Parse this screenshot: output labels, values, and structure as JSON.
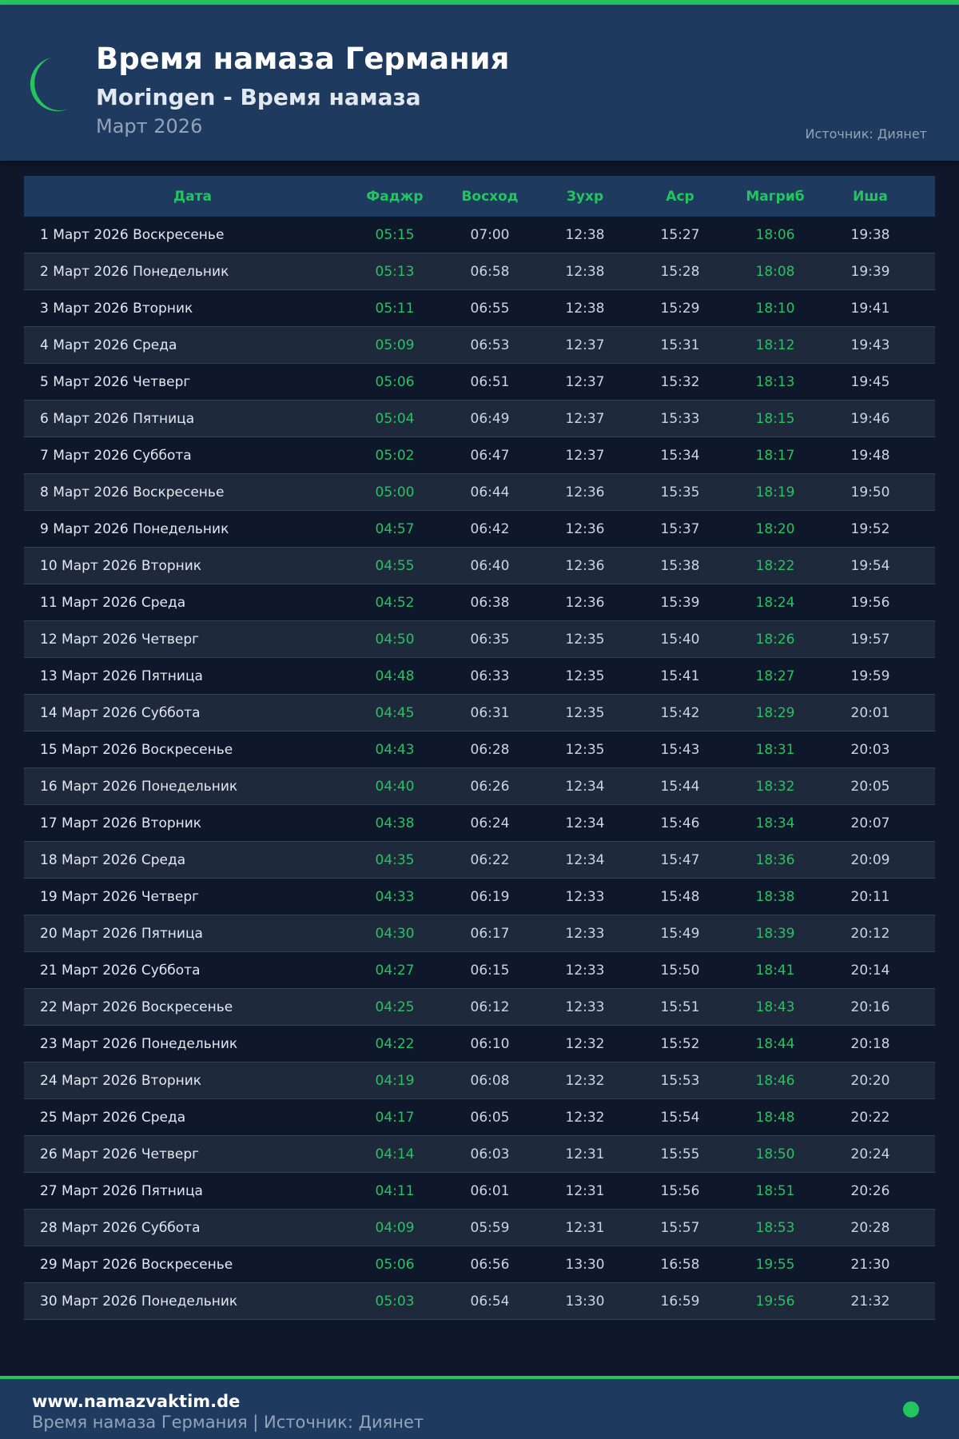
{
  "header": {
    "title": "Время намаза Германия",
    "subtitle": "Moringen - Время намаза",
    "month": "Март 2026",
    "source": "Источник: Диянет"
  },
  "colors": {
    "accent": "#22c55e",
    "header_bg": "#1e3a5f",
    "page_bg": "#0f172a"
  },
  "table": {
    "columns": [
      "Дата",
      "Фаджр",
      "Восход",
      "Зухр",
      "Аср",
      "Магриб",
      "Иша"
    ],
    "rows": [
      [
        "1 Март 2026 Воскресенье",
        "05:15",
        "07:00",
        "12:38",
        "15:27",
        "18:06",
        "19:38"
      ],
      [
        "2 Март 2026 Понедельник",
        "05:13",
        "06:58",
        "12:38",
        "15:28",
        "18:08",
        "19:39"
      ],
      [
        "3 Март 2026 Вторник",
        "05:11",
        "06:55",
        "12:38",
        "15:29",
        "18:10",
        "19:41"
      ],
      [
        "4 Март 2026 Среда",
        "05:09",
        "06:53",
        "12:37",
        "15:31",
        "18:12",
        "19:43"
      ],
      [
        "5 Март 2026 Четверг",
        "05:06",
        "06:51",
        "12:37",
        "15:32",
        "18:13",
        "19:45"
      ],
      [
        "6 Март 2026 Пятница",
        "05:04",
        "06:49",
        "12:37",
        "15:33",
        "18:15",
        "19:46"
      ],
      [
        "7 Март 2026 Суббота",
        "05:02",
        "06:47",
        "12:37",
        "15:34",
        "18:17",
        "19:48"
      ],
      [
        "8 Март 2026 Воскресенье",
        "05:00",
        "06:44",
        "12:36",
        "15:35",
        "18:19",
        "19:50"
      ],
      [
        "9 Март 2026 Понедельник",
        "04:57",
        "06:42",
        "12:36",
        "15:37",
        "18:20",
        "19:52"
      ],
      [
        "10 Март 2026 Вторник",
        "04:55",
        "06:40",
        "12:36",
        "15:38",
        "18:22",
        "19:54"
      ],
      [
        "11 Март 2026 Среда",
        "04:52",
        "06:38",
        "12:36",
        "15:39",
        "18:24",
        "19:56"
      ],
      [
        "12 Март 2026 Четверг",
        "04:50",
        "06:35",
        "12:35",
        "15:40",
        "18:26",
        "19:57"
      ],
      [
        "13 Март 2026 Пятница",
        "04:48",
        "06:33",
        "12:35",
        "15:41",
        "18:27",
        "19:59"
      ],
      [
        "14 Март 2026 Суббота",
        "04:45",
        "06:31",
        "12:35",
        "15:42",
        "18:29",
        "20:01"
      ],
      [
        "15 Март 2026 Воскресенье",
        "04:43",
        "06:28",
        "12:35",
        "15:43",
        "18:31",
        "20:03"
      ],
      [
        "16 Март 2026 Понедельник",
        "04:40",
        "06:26",
        "12:34",
        "15:44",
        "18:32",
        "20:05"
      ],
      [
        "17 Март 2026 Вторник",
        "04:38",
        "06:24",
        "12:34",
        "15:46",
        "18:34",
        "20:07"
      ],
      [
        "18 Март 2026 Среда",
        "04:35",
        "06:22",
        "12:34",
        "15:47",
        "18:36",
        "20:09"
      ],
      [
        "19 Март 2026 Четверг",
        "04:33",
        "06:19",
        "12:33",
        "15:48",
        "18:38",
        "20:11"
      ],
      [
        "20 Март 2026 Пятница",
        "04:30",
        "06:17",
        "12:33",
        "15:49",
        "18:39",
        "20:12"
      ],
      [
        "21 Март 2026 Суббота",
        "04:27",
        "06:15",
        "12:33",
        "15:50",
        "18:41",
        "20:14"
      ],
      [
        "22 Март 2026 Воскресенье",
        "04:25",
        "06:12",
        "12:33",
        "15:51",
        "18:43",
        "20:16"
      ],
      [
        "23 Март 2026 Понедельник",
        "04:22",
        "06:10",
        "12:32",
        "15:52",
        "18:44",
        "20:18"
      ],
      [
        "24 Март 2026 Вторник",
        "04:19",
        "06:08",
        "12:32",
        "15:53",
        "18:46",
        "20:20"
      ],
      [
        "25 Март 2026 Среда",
        "04:17",
        "06:05",
        "12:32",
        "15:54",
        "18:48",
        "20:22"
      ],
      [
        "26 Март 2026 Четверг",
        "04:14",
        "06:03",
        "12:31",
        "15:55",
        "18:50",
        "20:24"
      ],
      [
        "27 Март 2026 Пятница",
        "04:11",
        "06:01",
        "12:31",
        "15:56",
        "18:51",
        "20:26"
      ],
      [
        "28 Март 2026 Суббота",
        "04:09",
        "05:59",
        "12:31",
        "15:57",
        "18:53",
        "20:28"
      ],
      [
        "29 Март 2026 Воскресенье",
        "05:06",
        "06:56",
        "13:30",
        "16:58",
        "19:55",
        "21:30"
      ],
      [
        "30 Март 2026 Понедельник",
        "05:03",
        "06:54",
        "13:30",
        "16:59",
        "19:56",
        "21:32"
      ]
    ]
  },
  "footer": {
    "site": "www.namazvaktim.de",
    "text": "Время намаза Германия | Источник: Диянет"
  }
}
